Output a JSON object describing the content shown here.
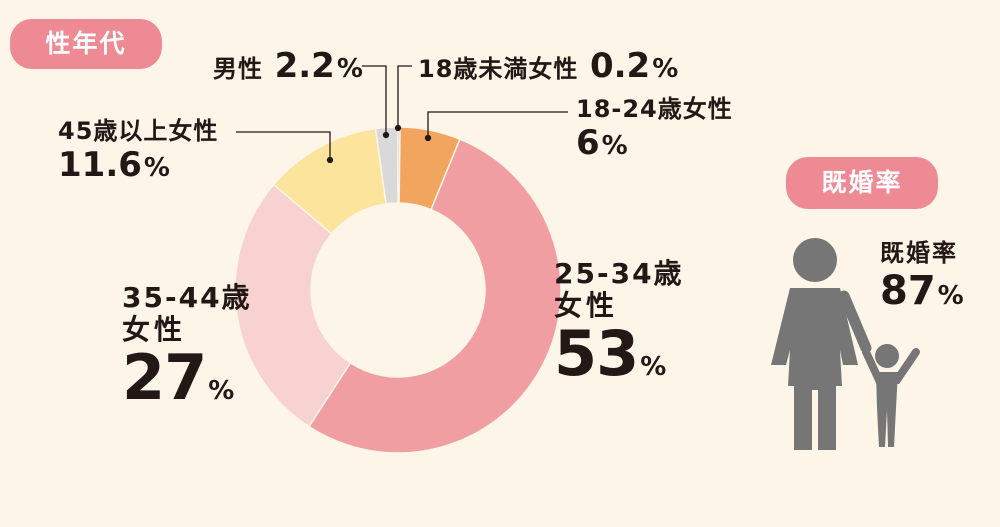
{
  "chart_data": {
    "type": "pie",
    "title": "性年代",
    "segments": [
      {
        "label": "18歳未満女性",
        "value": 0.2,
        "color": "#b0b0b0"
      },
      {
        "label": "18-24歳女性",
        "value": 6,
        "color": "#f2a55e"
      },
      {
        "label": "25-34歳女性",
        "value": 53,
        "color": "#f09ea2"
      },
      {
        "label": "35-44歳女性",
        "value": 27,
        "color": "#f7d2d0"
      },
      {
        "label": "45歳以上女性",
        "value": 11.6,
        "color": "#fce49c"
      },
      {
        "label": "男性",
        "value": 2.2,
        "color": "#d9d9d9"
      }
    ]
  },
  "labels": {
    "male_name": "男性",
    "male_value": "2.2",
    "under18_name": "18歳未満女性",
    "under18_value": "0.2",
    "a18_24_name": "18-24歳女性",
    "a18_24_value": "6",
    "a25_34_line1": "25-34歳",
    "a25_34_line2": "女性",
    "a25_34_value": "53",
    "a35_44_line1": "35-44歳",
    "a35_44_line2": "女性",
    "a35_44_value": "27",
    "a45_name": "45歳以上女性",
    "a45_value": "11.6",
    "percent": "%"
  },
  "marriage": {
    "pill": "既婚率",
    "label": "既婚率",
    "value": "87",
    "icon_color": "#767676"
  },
  "pill_gender": "性年代"
}
